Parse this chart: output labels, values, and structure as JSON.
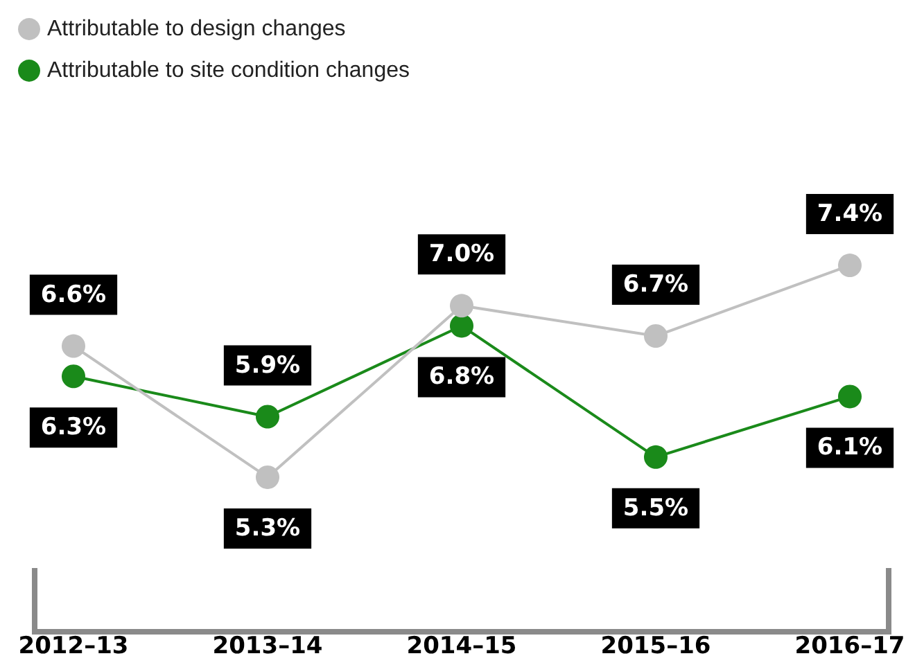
{
  "chart_data": {
    "type": "line",
    "categories": [
      "2012–13",
      "2013–14",
      "2014–15",
      "2015–16",
      "2016–17"
    ],
    "series": [
      {
        "name": "Attributable to design changes",
        "color": "#c0c0c0",
        "values": [
          6.6,
          5.3,
          7.0,
          6.7,
          7.4
        ],
        "value_labels": [
          "6.6%",
          "5.3%",
          "7.0%",
          "6.7%",
          "7.4%"
        ]
      },
      {
        "name": "Attributable to site condition changes",
        "color": "#1a8a1a",
        "values": [
          6.3,
          5.9,
          6.8,
          5.5,
          6.1
        ],
        "value_labels": [
          "6.3%",
          "5.9%",
          "6.8%",
          "5.5%",
          "6.1%"
        ]
      }
    ],
    "legend": "top left",
    "marker": "circle",
    "line_style": "solid",
    "grid": false
  }
}
